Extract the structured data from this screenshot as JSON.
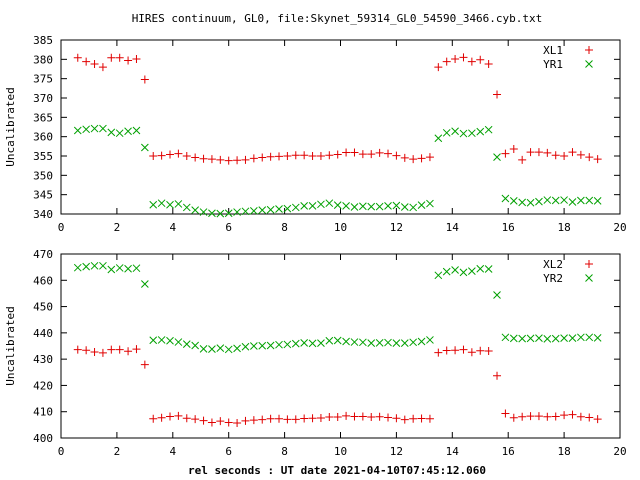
{
  "figure": {
    "title": "HIRES continuum, GL0, file:Skynet_59314_GL0_54590_3466.cyb.txt",
    "xlabel": "rel seconds : UT date 2021-04-10T07:45:12.060"
  },
  "colors": {
    "red": "#e00000",
    "green": "#00a000"
  },
  "chart_data": [
    {
      "type": "scatter",
      "ylabel": "Uncalibrated",
      "xlim": [
        0,
        20
      ],
      "ylim": [
        340,
        385
      ],
      "xticks": [
        0,
        2,
        4,
        6,
        8,
        10,
        12,
        14,
        16,
        18,
        20
      ],
      "yticks": [
        340,
        345,
        350,
        355,
        360,
        365,
        370,
        375,
        380,
        385
      ],
      "legend": "top-right",
      "grid": false,
      "x": [
        0.6,
        0.9,
        1.2,
        1.5,
        1.8,
        2.1,
        2.4,
        2.7,
        3.0,
        3.3,
        3.6,
        3.9,
        4.2,
        4.5,
        4.8,
        5.1,
        5.4,
        5.7,
        6.0,
        6.3,
        6.6,
        6.9,
        7.2,
        7.5,
        7.8,
        8.1,
        8.4,
        8.7,
        9.0,
        9.3,
        9.6,
        9.9,
        10.2,
        10.5,
        10.8,
        11.1,
        11.4,
        11.7,
        12.0,
        12.3,
        12.6,
        12.9,
        13.2,
        13.5,
        13.8,
        14.1,
        14.4,
        14.7,
        15.0,
        15.3,
        15.6,
        15.9,
        16.2,
        16.5,
        16.8,
        17.1,
        17.4,
        17.7,
        18.0,
        18.3,
        18.6,
        18.9,
        19.2
      ],
      "series": [
        {
          "name": "XL1",
          "marker": "plus",
          "color": "#e00000",
          "values": [
            380.4,
            379.4,
            378.8,
            378.0,
            380.4,
            380.4,
            379.7,
            380.1,
            374.8,
            355.0,
            355.1,
            355.4,
            355.6,
            355.0,
            354.6,
            354.3,
            354.2,
            354.0,
            353.8,
            353.9,
            354.0,
            354.4,
            354.6,
            354.8,
            354.9,
            355.0,
            355.2,
            355.2,
            355.0,
            355.0,
            355.2,
            355.4,
            355.9,
            355.9,
            355.5,
            355.5,
            355.8,
            355.6,
            355.1,
            354.5,
            354.2,
            354.4,
            354.7,
            378.0,
            379.4,
            380.1,
            380.5,
            379.4,
            379.9,
            378.8,
            370.9,
            355.6,
            356.8,
            354.0,
            356.0,
            356.0,
            355.8,
            355.2,
            355.0,
            356.0,
            355.3,
            354.7,
            354.2
          ]
        },
        {
          "name": "YR1",
          "marker": "x",
          "color": "#00a000",
          "values": [
            361.6,
            361.9,
            362.1,
            362.1,
            361.1,
            360.9,
            361.4,
            361.6,
            357.2,
            342.4,
            342.8,
            342.4,
            342.6,
            341.7,
            341.0,
            340.5,
            340.2,
            340.1,
            340.2,
            340.5,
            340.7,
            340.8,
            341.0,
            341.1,
            341.3,
            341.4,
            341.7,
            342.1,
            342.1,
            342.5,
            342.8,
            342.3,
            342.1,
            341.8,
            342.0,
            341.9,
            341.9,
            342.1,
            342.2,
            341.8,
            341.7,
            342.3,
            342.7,
            359.6,
            361.0,
            361.4,
            360.8,
            360.9,
            361.3,
            361.8,
            354.7,
            344.0,
            343.4,
            343.0,
            342.9,
            343.2,
            343.6,
            343.5,
            343.6,
            343.1,
            343.5,
            343.5,
            343.4
          ]
        }
      ]
    },
    {
      "type": "scatter",
      "ylabel": "Uncalibrated",
      "xlim": [
        0,
        20
      ],
      "ylim": [
        400,
        470
      ],
      "xticks": [
        0,
        2,
        4,
        6,
        8,
        10,
        12,
        14,
        16,
        18,
        20
      ],
      "yticks": [
        400,
        410,
        420,
        430,
        440,
        450,
        460,
        470
      ],
      "legend": "top-right",
      "grid": false,
      "x": [
        0.6,
        0.9,
        1.2,
        1.5,
        1.8,
        2.1,
        2.4,
        2.7,
        3.0,
        3.3,
        3.6,
        3.9,
        4.2,
        4.5,
        4.8,
        5.1,
        5.4,
        5.7,
        6.0,
        6.3,
        6.6,
        6.9,
        7.2,
        7.5,
        7.8,
        8.1,
        8.4,
        8.7,
        9.0,
        9.3,
        9.6,
        9.9,
        10.2,
        10.5,
        10.8,
        11.1,
        11.4,
        11.7,
        12.0,
        12.3,
        12.6,
        12.9,
        13.2,
        13.5,
        13.8,
        14.1,
        14.4,
        14.7,
        15.0,
        15.3,
        15.6,
        15.9,
        16.2,
        16.5,
        16.8,
        17.1,
        17.4,
        17.7,
        18.0,
        18.3,
        18.6,
        18.9,
        19.2
      ],
      "series": [
        {
          "name": "XL2",
          "marker": "plus",
          "color": "#e00000",
          "values": [
            433.6,
            433.4,
            432.7,
            432.4,
            433.6,
            433.6,
            433.0,
            433.8,
            427.9,
            407.3,
            407.7,
            408.2,
            408.4,
            407.5,
            407.2,
            406.6,
            405.9,
            406.4,
            405.9,
            405.7,
            406.5,
            406.8,
            407.0,
            407.3,
            407.3,
            407.1,
            407.1,
            407.4,
            407.5,
            407.6,
            408.0,
            408.0,
            408.4,
            408.2,
            408.2,
            408.0,
            408.1,
            407.8,
            407.5,
            407.0,
            407.3,
            407.4,
            407.3,
            432.5,
            433.3,
            433.4,
            433.6,
            432.6,
            433.2,
            433.1,
            423.7,
            409.3,
            407.7,
            408.1,
            408.3,
            408.3,
            408.1,
            408.2,
            408.7,
            408.9,
            408.1,
            407.8,
            407.2
          ]
        },
        {
          "name": "YR2",
          "marker": "x",
          "color": "#00a000",
          "values": [
            464.8,
            465.2,
            465.5,
            465.5,
            464.1,
            464.7,
            464.4,
            464.6,
            458.6,
            437.2,
            437.3,
            437.0,
            436.5,
            435.7,
            435.2,
            433.9,
            433.8,
            434.2,
            433.7,
            434.1,
            434.7,
            435.0,
            435.1,
            435.2,
            435.5,
            435.6,
            435.9,
            436.2,
            436.0,
            436.1,
            437.0,
            437.1,
            436.7,
            436.5,
            436.4,
            436.1,
            436.2,
            436.3,
            436.1,
            436.1,
            436.4,
            436.7,
            437.3,
            461.9,
            463.3,
            463.9,
            463.0,
            463.5,
            464.4,
            464.3,
            454.4,
            438.3,
            437.9,
            437.8,
            437.9,
            438.0,
            437.7,
            437.8,
            438.0,
            438.0,
            438.3,
            438.3,
            438.1
          ]
        }
      ]
    }
  ]
}
